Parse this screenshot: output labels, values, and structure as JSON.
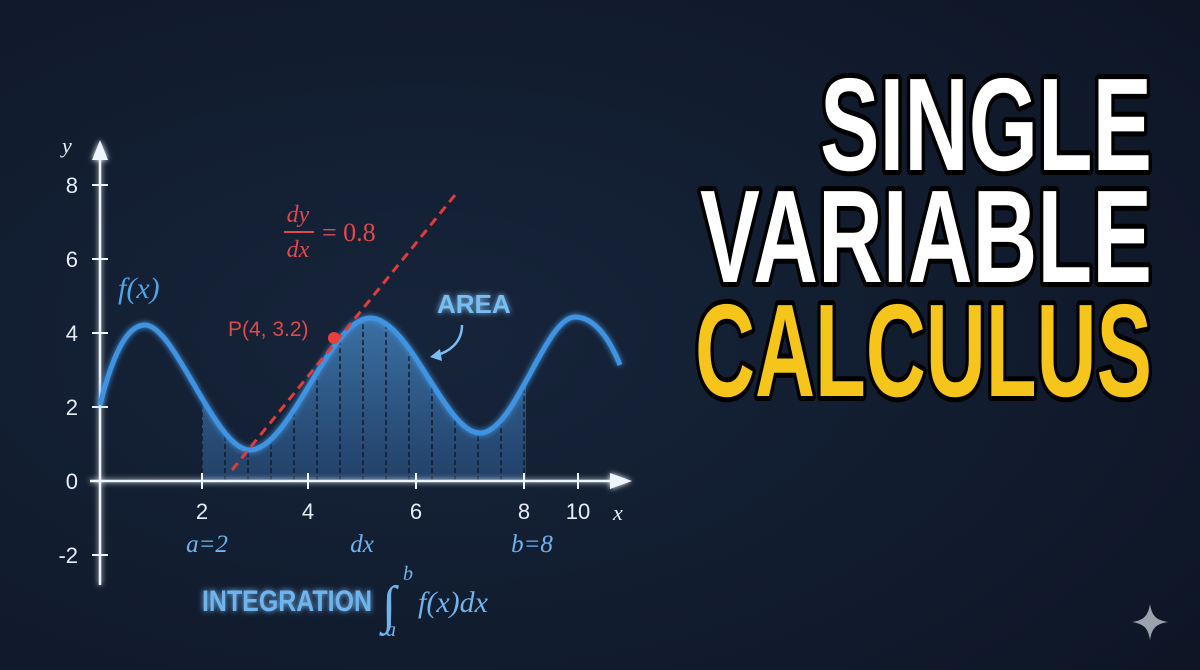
{
  "title": {
    "line1": "SINGLE",
    "line2": "VARIABLE",
    "line3": "CALCULUS"
  },
  "graph": {
    "y_axis_label": "y",
    "x_axis_label": "x",
    "y_ticks": [
      "8",
      "6",
      "4",
      "2",
      "0",
      "-2"
    ],
    "x_ticks": [
      "2",
      "4",
      "6",
      "8",
      "10"
    ],
    "function_label": "f(x)",
    "derivative": {
      "numerator": "dy",
      "denominator": "dx",
      "value": "= 0.8"
    },
    "point_label": "P(4, 3.2)",
    "area_label": "AREA",
    "lower_bound": "a=2",
    "upper_bound": "b=8",
    "dx_label": "dx",
    "integration_label": "INTEGRATION",
    "integral": {
      "symbol": "∫",
      "upper": "b",
      "lower": "a",
      "integrand": "f(x)dx"
    }
  }
}
